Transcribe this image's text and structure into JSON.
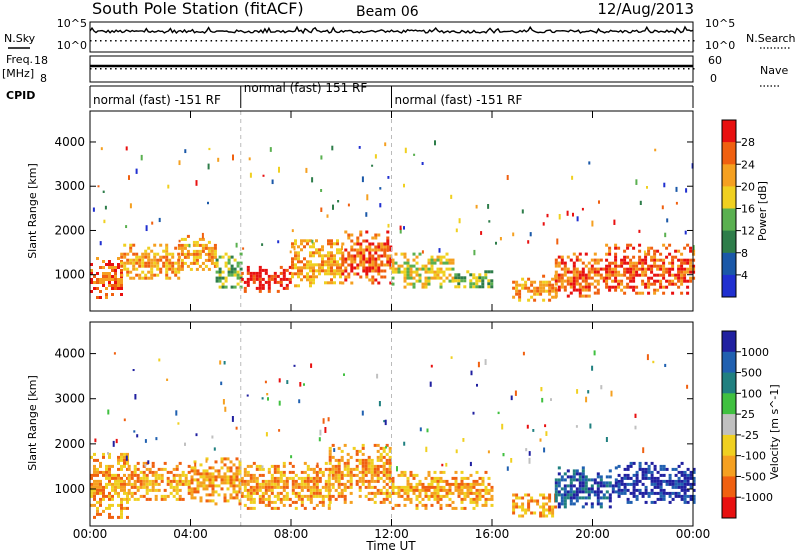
{
  "header": {
    "station": "South Pole Station (fitACF)",
    "beam": "Beam 06",
    "date": "12/Aug/2013"
  },
  "top_labels": {
    "nsky": "N.Sky",
    "freq": "Freq.",
    "freq_unit": "[MHz]",
    "cpid": "CPID",
    "nsearch": "N.Search",
    "nave": "Nave"
  },
  "top_axes": {
    "noise_left_ticks": [
      "10^5",
      "10^0"
    ],
    "noise_right_ticks": [
      "10^5",
      "10^0"
    ],
    "freq_ticks": [
      "18",
      "8"
    ],
    "nave_ticks": [
      "60",
      "0"
    ]
  },
  "cpid_segments": [
    {
      "label": "normal (fast) -151 RF",
      "start_h": 0,
      "end_h": 6
    },
    {
      "label": "normal (fast) 151 RF",
      "start_h": 6,
      "end_h": 12
    },
    {
      "label": "normal (fast) -151 RF",
      "start_h": 12,
      "end_h": 24
    }
  ],
  "colors": {
    "power": [
      "#2030d0",
      "#1a58a8",
      "#2e7d4a",
      "#5ab050",
      "#f0d020",
      "#f5a020",
      "#f06010",
      "#e81010"
    ],
    "velocity": [
      "#2020a0",
      "#2060b0",
      "#208080",
      "#40c040",
      "#c0c0c0",
      "#f0d020",
      "#f5a020",
      "#f06010",
      "#e81010"
    ],
    "frame": "#000000"
  },
  "chart_data": [
    {
      "type": "heatmap",
      "name": "power",
      "xlabel": "Time UT",
      "ylabel": "Slant Range [km]",
      "xlim": [
        0,
        24
      ],
      "ylim": [
        180,
        4700
      ],
      "x_ticks": [
        "00:00",
        "04:00",
        "08:00",
        "12:00",
        "16:00",
        "20:00",
        "00:00"
      ],
      "y_ticks": [
        1000,
        2000,
        3000,
        4000
      ],
      "colorbar_label": "Power [dB]",
      "colorbar_ticks": [
        "4",
        "8",
        "12",
        "16",
        "20",
        "24",
        "28"
      ],
      "layers": [
        {
          "start_h": 0.0,
          "end_h": 1.2,
          "lo": 500,
          "hi": 1400,
          "bin": 6
        },
        {
          "start_h": 1.2,
          "end_h": 3.5,
          "lo": 900,
          "hi": 1700,
          "bin": 5
        },
        {
          "start_h": 3.5,
          "end_h": 5.0,
          "lo": 1100,
          "hi": 1900,
          "bin": 5
        },
        {
          "start_h": 5.0,
          "end_h": 6.0,
          "lo": 700,
          "hi": 1500,
          "bin": 3
        },
        {
          "start_h": 6.0,
          "end_h": 8.0,
          "lo": 650,
          "hi": 1200,
          "bin": 7
        },
        {
          "start_h": 8.0,
          "end_h": 10.0,
          "lo": 750,
          "hi": 1800,
          "bin": 5
        },
        {
          "start_h": 10.0,
          "end_h": 12.0,
          "lo": 800,
          "hi": 2000,
          "bin": 6
        },
        {
          "start_h": 12.0,
          "end_h": 14.5,
          "lo": 700,
          "hi": 1500,
          "bin": 4
        },
        {
          "start_h": 14.5,
          "end_h": 16.0,
          "lo": 700,
          "hi": 1100,
          "bin": 3
        },
        {
          "start_h": 16.8,
          "end_h": 18.5,
          "lo": 400,
          "hi": 1000,
          "bin": 5
        },
        {
          "start_h": 18.5,
          "end_h": 20.5,
          "lo": 500,
          "hi": 1500,
          "bin": 6
        },
        {
          "start_h": 20.5,
          "end_h": 24.0,
          "lo": 600,
          "hi": 1700,
          "bin": 6
        }
      ]
    },
    {
      "type": "heatmap",
      "name": "velocity",
      "xlabel": "Time UT",
      "ylabel": "Slant Range [km]",
      "xlim": [
        0,
        24
      ],
      "ylim": [
        180,
        4700
      ],
      "x_ticks": [
        "00:00",
        "04:00",
        "08:00",
        "12:00",
        "16:00",
        "20:00",
        "00:00"
      ],
      "y_ticks": [
        1000,
        2000,
        3000,
        4000
      ],
      "colorbar_label": "Velocity [m s^-1]",
      "colorbar_ticks": [
        "1000",
        "500",
        "100",
        "25",
        "-25",
        "-100",
        "-500",
        "-1000"
      ],
      "layers": [
        {
          "start_h": 0.0,
          "end_h": 1.5,
          "lo": 400,
          "hi": 1800,
          "bin": 6
        },
        {
          "start_h": 1.5,
          "end_h": 4.0,
          "lo": 800,
          "hi": 1600,
          "bin": 6
        },
        {
          "start_h": 4.0,
          "end_h": 6.0,
          "lo": 700,
          "hi": 1700,
          "bin": 6
        },
        {
          "start_h": 6.0,
          "end_h": 9.5,
          "lo": 600,
          "hi": 1600,
          "bin": 6
        },
        {
          "start_h": 9.5,
          "end_h": 12.0,
          "lo": 700,
          "hi": 2000,
          "bin": 6
        },
        {
          "start_h": 12.0,
          "end_h": 16.0,
          "lo": 600,
          "hi": 1400,
          "bin": 6
        },
        {
          "start_h": 16.8,
          "end_h": 18.5,
          "lo": 400,
          "hi": 900,
          "bin": 6
        },
        {
          "start_h": 18.5,
          "end_h": 21.0,
          "lo": 600,
          "hi": 1500,
          "bin": 1
        },
        {
          "start_h": 21.0,
          "end_h": 24.0,
          "lo": 700,
          "hi": 1600,
          "bin": 0
        }
      ]
    }
  ]
}
